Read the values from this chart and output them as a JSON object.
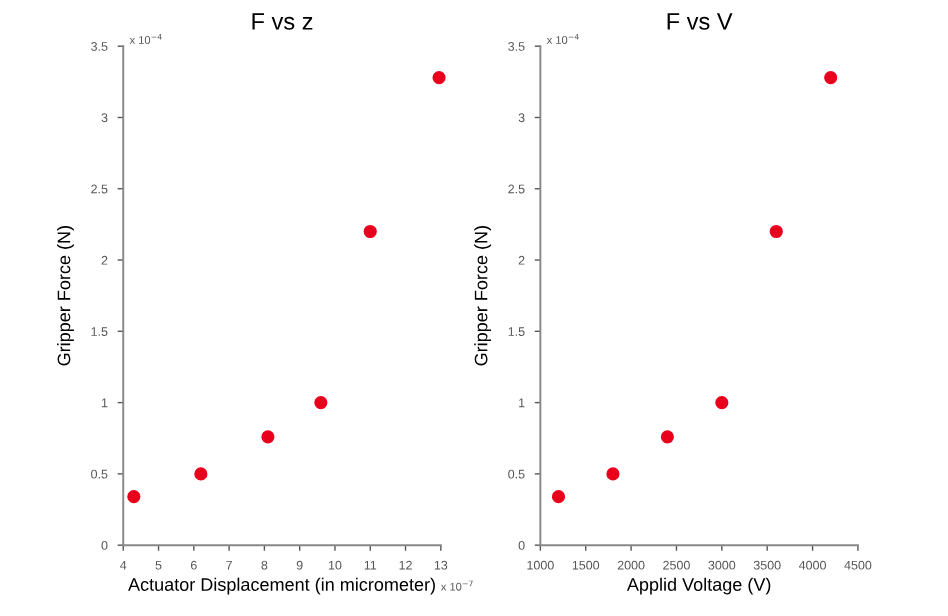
{
  "chart_data": [
    {
      "type": "scatter",
      "title": "F vs z",
      "xlabel": "Actuator Displacement (in micrometer)",
      "ylabel": "Gripper Force (N)",
      "annotations": [
        "x 10$^{−7}$",
        "x 10$^{−4}$"
      ],
      "color": "#e8001c",
      "marker": "circle",
      "grid": false,
      "legend": false,
      "x": [
        4.3,
        6.2,
        8.1,
        9.6,
        11.0,
        12.95
      ],
      "values": [
        0.34,
        0.5,
        0.76,
        1.0,
        2.2,
        3.28
      ],
      "xlim": [
        4,
        13
      ],
      "xticks": [
        4,
        5,
        6,
        7,
        8,
        9,
        10,
        11,
        12,
        13
      ],
      "ylim": [
        0,
        3.5
      ],
      "yticks": [
        0,
        0.5,
        1,
        1.5,
        2,
        2.5,
        3,
        3.5
      ]
    },
    {
      "type": "scatter",
      "title": "F vs V",
      "xlabel": "Applid Voltage (V)",
      "ylabel": "Gripper Force (N)",
      "annotations": [
        "x 10$^{−4}$"
      ],
      "color": "#e8001c",
      "marker": "circle",
      "grid": false,
      "legend": false,
      "x": [
        1200,
        1800,
        2400,
        3000,
        3600,
        4200
      ],
      "values": [
        0.34,
        0.5,
        0.76,
        1.0,
        2.2,
        3.28
      ],
      "xlim": [
        1000,
        4500
      ],
      "xticks": [
        1000,
        1500,
        2000,
        2500,
        3000,
        3500,
        4000,
        4500
      ],
      "ylim": [
        0,
        3.5
      ],
      "yticks": [
        0,
        0.5,
        1,
        1.5,
        2,
        2.5,
        3,
        3.5
      ]
    }
  ]
}
